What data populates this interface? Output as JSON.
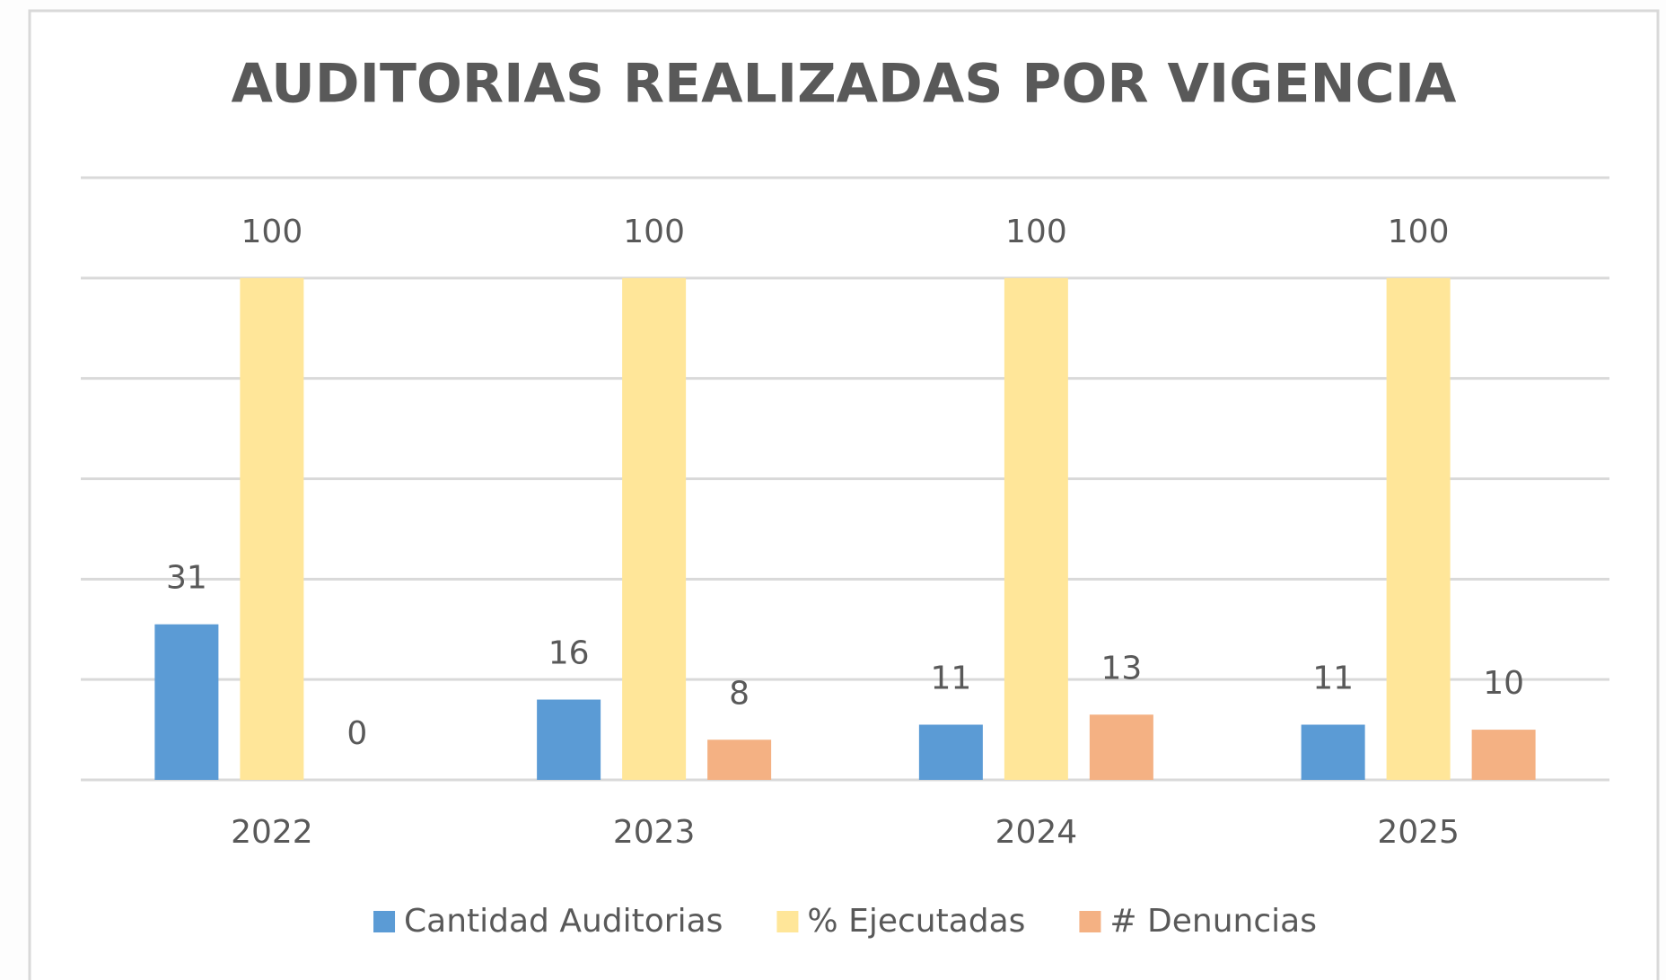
{
  "chart_data": {
    "type": "bar",
    "title": "AUDITORIAS REALIZADAS POR VIGENCIA",
    "categories": [
      "2022",
      "2023",
      "2024",
      "2025"
    ],
    "series": [
      {
        "name": "Cantidad Auditorias",
        "color": "#5b9bd5",
        "values": [
          31,
          16,
          11,
          11
        ]
      },
      {
        "name": "% Ejecutadas",
        "color": "#ffe699",
        "values": [
          100,
          100,
          100,
          100
        ]
      },
      {
        "name": "# Denuncias",
        "color": "#f4b183",
        "values": [
          0,
          8,
          13,
          10
        ]
      }
    ],
    "ylim": [
      0,
      120
    ],
    "yticks": [
      0,
      20,
      40,
      60,
      80,
      100,
      120
    ],
    "grid": true,
    "legend": "bottom"
  }
}
